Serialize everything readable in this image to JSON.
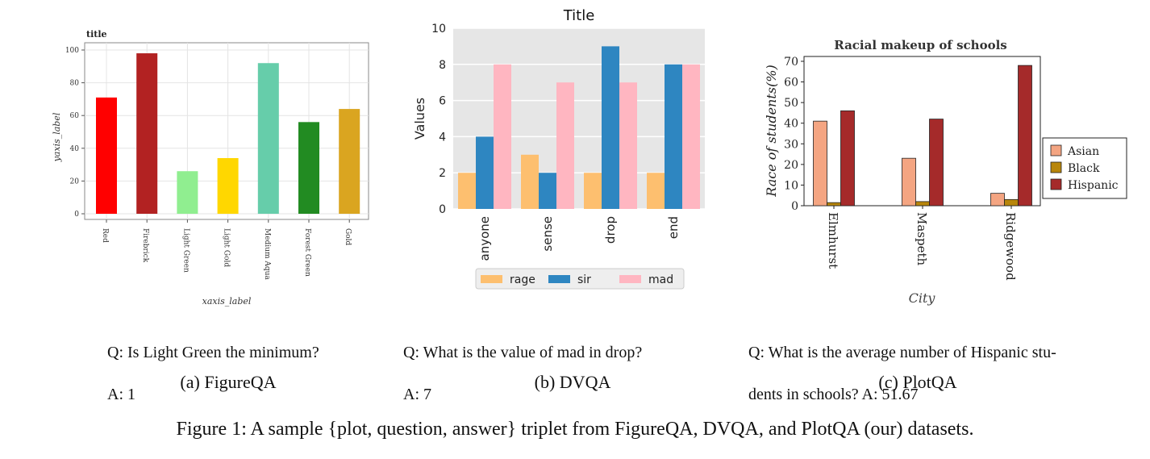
{
  "chart_data": [
    {
      "id": "figureqa",
      "type": "bar",
      "title": "title",
      "xlabel": "xaxis_label",
      "ylabel": "yaxis_label",
      "ylim": [
        0,
        100
      ],
      "yticks": [
        0,
        20,
        40,
        60,
        80,
        100
      ],
      "grid": true,
      "categories": [
        "Red",
        "Firebrick",
        "Light Green",
        "Light Gold",
        "Medium Aqua",
        "Forest Green",
        "Gold"
      ],
      "values": [
        71,
        98,
        26,
        34,
        92,
        56,
        64
      ],
      "colors": [
        "#ff0000",
        "#b22222",
        "#90ee90",
        "#ffd700",
        "#66cdaa",
        "#228b22",
        "#daa520"
      ]
    },
    {
      "id": "dvqa",
      "type": "bar",
      "title": "Title",
      "xlabel": "",
      "ylabel": "Values",
      "ylim": [
        0,
        10
      ],
      "yticks": [
        0,
        2,
        4,
        6,
        8,
        10
      ],
      "grid": true,
      "legend_position": "bottom",
      "categories": [
        "anyone",
        "sense",
        "drop",
        "end"
      ],
      "series": [
        {
          "name": "rage",
          "color": "#fdbf6f",
          "values": [
            2,
            3,
            2,
            2
          ]
        },
        {
          "name": "sir",
          "color": "#2e86c1",
          "values": [
            4,
            2,
            9,
            8
          ]
        },
        {
          "name": "mad",
          "color": "#ffb6c1",
          "values": [
            8,
            7,
            7,
            8
          ]
        }
      ]
    },
    {
      "id": "plotqa",
      "type": "bar",
      "title": "Racial makeup of schools",
      "xlabel": "City",
      "ylabel": "Race of students(%)",
      "ylim": [
        0,
        70
      ],
      "yticks": [
        0,
        10,
        20,
        30,
        40,
        50,
        60,
        70
      ],
      "grid": false,
      "legend_position": "right",
      "categories": [
        "Elmhurst",
        "Maspeth",
        "Ridgewood"
      ],
      "series": [
        {
          "name": "Asian",
          "color": "#f4a582",
          "values": [
            41,
            23,
            6
          ]
        },
        {
          "name": "Black",
          "color": "#b8860b",
          "values": [
            1.5,
            2,
            3
          ]
        },
        {
          "name": "Hispanic",
          "color": "#a52a2a",
          "values": [
            46,
            42,
            68
          ]
        }
      ]
    }
  ],
  "qa": {
    "a_question": "Q: Is Light Green the minimum?",
    "a_answer": "A: 1",
    "b_question": "Q: What is the value of mad in drop?",
    "b_answer": "A: 7",
    "c_question_line1": "Q: What is the average number of Hispanic stu-",
    "c_question_line2": "dents in schools? A: 51.67"
  },
  "subcaptions": {
    "a": "(a) FigureQA",
    "b": "(b) DVQA",
    "c": "(c) PlotQA"
  },
  "caption": "Figure 1: A sample {plot, question, answer} triplet from FigureQA, DVQA, and PlotQA (our) datasets."
}
